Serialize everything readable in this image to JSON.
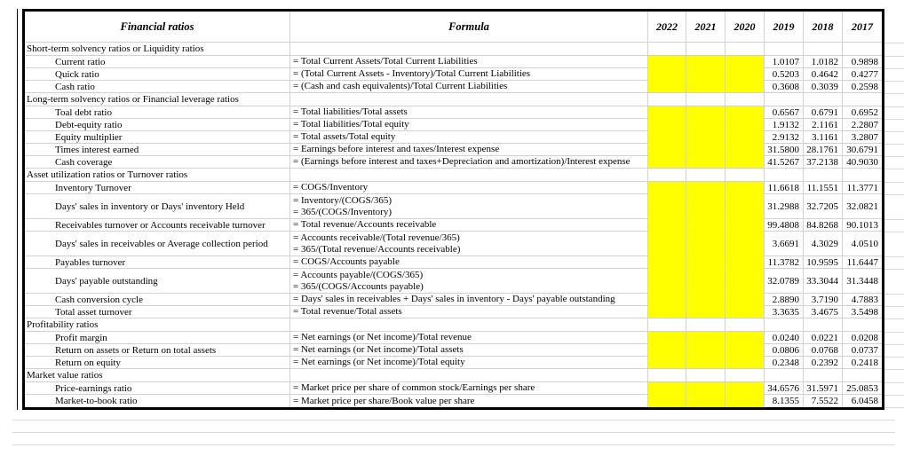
{
  "sheet": {
    "title_header": "Financial ratios",
    "formula_header": "Formula",
    "years": [
      "2022",
      "2021",
      "2020",
      "2019",
      "2018",
      "2017"
    ],
    "value_years": [
      "2019",
      "2018",
      "2017"
    ],
    "highlight_color": "#FFFF00",
    "rows": [
      {
        "type": "section",
        "label": "Short-term solvency ratios or Liquidity ratios"
      },
      {
        "type": "data",
        "label": "Current ratio",
        "formula_lines": [
          "= Total Current Assets/Total Current Liabilities"
        ],
        "values": [
          "1.0107",
          "1.0182",
          "0.9898"
        ]
      },
      {
        "type": "data",
        "label": "Quick ratio",
        "formula_lines": [
          "= (Total Current Assets - Inventory)/Total Current Liabilities"
        ],
        "values": [
          "0.5203",
          "0.4642",
          "0.4277"
        ]
      },
      {
        "type": "data",
        "label": "Cash ratio",
        "formula_lines": [
          "= (Cash and cash equivalents)/Total Current Liabilities"
        ],
        "values": [
          "0.3608",
          "0.3039",
          "0.2598"
        ]
      },
      {
        "type": "section",
        "label": "Long-term solvency ratios or Financial leverage ratios"
      },
      {
        "type": "data",
        "label": "Toal debt ratio",
        "formula_lines": [
          "= Total liabilities/Total assets"
        ],
        "values": [
          "0.6567",
          "0.6791",
          "0.6952"
        ]
      },
      {
        "type": "data",
        "label": "Debt-equity ratio",
        "formula_lines": [
          "= Total liabilities/Total equity"
        ],
        "values": [
          "1.9132",
          "2.1161",
          "2.2807"
        ]
      },
      {
        "type": "data",
        "label": "Equity multiplier",
        "formula_lines": [
          "= Total assets/Total equity"
        ],
        "values": [
          "2.9132",
          "3.1161",
          "3.2807"
        ]
      },
      {
        "type": "data",
        "label": "Times interest earned",
        "formula_lines": [
          "= Earnings before interest and taxes/Interest expense"
        ],
        "values": [
          "31.5800",
          "28.1761",
          "30.6791"
        ]
      },
      {
        "type": "data",
        "label": "Cash coverage",
        "formula_lines": [
          "= (Earnings before interest and taxes+Depreciation and amortization)/Interest expense"
        ],
        "values": [
          "41.5267",
          "37.2138",
          "40.9030"
        ]
      },
      {
        "type": "section",
        "label": "Asset utilization ratios or Turnover ratios"
      },
      {
        "type": "data",
        "label": "Inventory Turnover",
        "formula_lines": [
          "= COGS/Inventory"
        ],
        "values": [
          "11.6618",
          "11.1551",
          "11.3771"
        ]
      },
      {
        "type": "data",
        "label": "Days' sales in inventory or Days' inventory Held",
        "formula_lines": [
          "= Inventory/(COGS/365)",
          "= 365/(COGS/Inventory)"
        ],
        "values": [
          "31.2988",
          "32.7205",
          "32.0821"
        ]
      },
      {
        "type": "data",
        "label": "Receivables turnover or Accounts receivable turnover",
        "formula_lines": [
          "= Total revenue/Accounts receivable"
        ],
        "values": [
          "99.4808",
          "84.8268",
          "90.1013"
        ]
      },
      {
        "type": "data",
        "label": "Days' sales in receivables or Average collection period",
        "formula_lines": [
          "= Accounts receivable/(Total revenue/365)",
          "= 365/(Total revenue/Accounts receivable)"
        ],
        "values": [
          "3.6691",
          "4.3029",
          "4.0510"
        ]
      },
      {
        "type": "data",
        "label": "Payables turnover",
        "formula_lines": [
          "= COGS/Accounts payable"
        ],
        "values": [
          "11.3782",
          "10.9595",
          "11.6447"
        ]
      },
      {
        "type": "data",
        "label": "Days' payable outstanding",
        "formula_lines": [
          "= Accounts payable/(COGS/365)",
          "= 365/(COGS/Accounts payable)"
        ],
        "values": [
          "32.0789",
          "33.3044",
          "31.3448"
        ]
      },
      {
        "type": "data",
        "label": "Cash conversion cycle",
        "formula_lines": [
          "= Days' sales in receivables + Days' sales in inventory - Days' payable outstanding"
        ],
        "values": [
          "2.8890",
          "3.7190",
          "4.7883"
        ]
      },
      {
        "type": "data",
        "label": "Total asset turnover",
        "formula_lines": [
          "= Total revenue/Total assets"
        ],
        "values": [
          "3.3635",
          "3.4675",
          "3.5498"
        ]
      },
      {
        "type": "section",
        "label": "Profitability ratios"
      },
      {
        "type": "data",
        "label": "Profit margin",
        "formula_lines": [
          "= Net earnings (or Net income)/Total revenue"
        ],
        "values": [
          "0.0240",
          "0.0221",
          "0.0208"
        ]
      },
      {
        "type": "data",
        "label": "Return on assets or Return on total assets",
        "formula_lines": [
          "= Net earnings (or Net income)/Total assets"
        ],
        "values": [
          "0.0806",
          "0.0768",
          "0.0737"
        ]
      },
      {
        "type": "data",
        "label": "Return on equity",
        "formula_lines": [
          "= Net earnings (or Net income)/Total equity"
        ],
        "values": [
          "0.2348",
          "0.2392",
          "0.2418"
        ]
      },
      {
        "type": "section",
        "label": "Market value ratios"
      },
      {
        "type": "data",
        "label": "Price-earnings ratio",
        "formula_lines": [
          "= Market price per share of common stock/Earnings per share"
        ],
        "values": [
          "34.6576",
          "31.5971",
          "25.0853"
        ]
      },
      {
        "type": "data",
        "label": "Market-to-book ratio",
        "formula_lines": [
          "= Market price per share/Book value per share"
        ],
        "values": [
          "8.1355",
          "7.5522",
          "6.0458"
        ]
      }
    ]
  }
}
